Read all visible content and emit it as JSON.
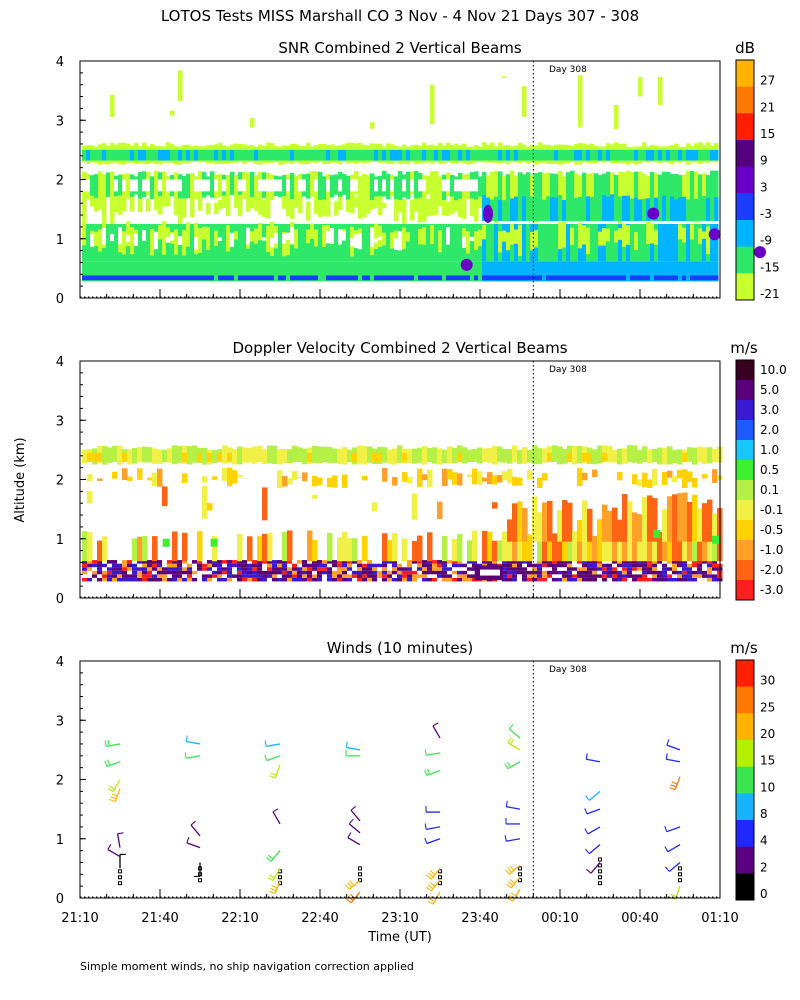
{
  "page": {
    "title": "LOTOS Tests MISS Marshall CO   3 Nov -  4 Nov 21 Days 307 - 308",
    "footnote": "Simple moment winds, no ship navigation correction applied"
  },
  "chart_data": [
    {
      "type": "heatmap",
      "id": "snr",
      "title": "SNR Combined 2 Vertical Beams",
      "ylabel": "",
      "xlim_minutes": [
        0,
        240
      ],
      "ylim": [
        0,
        4
      ],
      "yticks": [
        "0",
        "1",
        "2",
        "3",
        "4"
      ],
      "day_marker": {
        "label": "Day 308",
        "x_minutes": 170
      },
      "colorbar": {
        "unit": "dB",
        "labels": [
          "27",
          "21",
          "15",
          "9",
          "3",
          "-3",
          "-9",
          "-15",
          "-21"
        ],
        "colors": [
          "#ffb400",
          "#ff7800",
          "#ff1e00",
          "#55007f",
          "#6a00c8",
          "#1c3cff",
          "#00b4ff",
          "#2ee86a",
          "#c8ff2e"
        ]
      },
      "layers": [
        {
          "alt_km": [
            0.3,
            0.62
          ],
          "value_db": -9,
          "note": "low-level echo"
        },
        {
          "alt_km": [
            0.62,
            1.25
          ],
          "value_db": -15
        },
        {
          "alt_km": [
            1.6,
            2.1
          ],
          "value_db": -15
        },
        {
          "alt_km": [
            2.25,
            2.6
          ],
          "value_db": -15
        }
      ]
    },
    {
      "type": "heatmap",
      "id": "doppler",
      "title": "Doppler Velocity Combined 2 Vertical Beams",
      "ylabel": "Altitude (km)",
      "xlim_minutes": [
        0,
        240
      ],
      "ylim": [
        0,
        4
      ],
      "yticks": [
        "0",
        "1",
        "2",
        "3",
        "4"
      ],
      "day_marker": {
        "label": "Day 308",
        "x_minutes": 170
      },
      "colorbar": {
        "unit": "m/s",
        "labels": [
          "10.0",
          "5.0",
          "3.0",
          "2.0",
          "1.0",
          "0.5",
          "0.1",
          "-0.1",
          "-0.5",
          "-1.0",
          "-2.0",
          "-3.0"
        ],
        "colors": [
          "#3a0020",
          "#5a007a",
          "#3a1ad0",
          "#1e5aff",
          "#16c8ff",
          "#3cf030",
          "#b4f046",
          "#f0f046",
          "#ffd200",
          "#ffa028",
          "#ff6414",
          "#ff1e1e"
        ]
      }
    },
    {
      "type": "scatter",
      "id": "winds",
      "title": "Winds (10 minutes)",
      "xlabel": "Time (UT)",
      "xlim_minutes": [
        0,
        240
      ],
      "ylim": [
        0,
        4
      ],
      "yticks": [
        "0",
        "1",
        "2",
        "3",
        "4"
      ],
      "xticks": [
        "21:10",
        "21:40",
        "22:10",
        "22:40",
        "23:10",
        "23:40",
        "00:10",
        "00:40",
        "01:10"
      ],
      "day_marker": {
        "label": "Day 308",
        "x_minutes": 170
      },
      "colorbar": {
        "unit": "m/s",
        "labels": [
          "30",
          "25",
          "20",
          "15",
          "10",
          "8",
          "4",
          "2",
          "0"
        ],
        "colors": [
          "#ff2000",
          "#ff7800",
          "#ffb400",
          "#b4f000",
          "#3ce650",
          "#16b4ff",
          "#1e28ff",
          "#5a0080",
          "#000000"
        ]
      },
      "profiles_minutes": [
        15,
        45,
        75,
        105,
        135,
        165,
        195,
        225
      ],
      "barbs": [
        {
          "t": 15,
          "alt": 0.5,
          "spd": 1,
          "dir": 0
        },
        {
          "t": 15,
          "alt": 0.7,
          "spd": 3,
          "dir": 300
        },
        {
          "t": 15,
          "alt": 0.85,
          "spd": 2,
          "dir": 350
        },
        {
          "t": 15,
          "alt": 1.85,
          "spd": 20,
          "dir": 200
        },
        {
          "t": 15,
          "alt": 2.0,
          "spd": 15,
          "dir": 210
        },
        {
          "t": 15,
          "alt": 2.3,
          "spd": 12,
          "dir": 250
        },
        {
          "t": 15,
          "alt": 2.6,
          "spd": 13,
          "dir": 260
        },
        {
          "t": 45,
          "alt": 0.6,
          "spd": 1,
          "dir": 180
        },
        {
          "t": 45,
          "alt": 0.85,
          "spd": 2,
          "dir": 290
        },
        {
          "t": 45,
          "alt": 1.05,
          "spd": 2,
          "dir": 320
        },
        {
          "t": 45,
          "alt": 2.4,
          "spd": 10,
          "dir": 260
        },
        {
          "t": 45,
          "alt": 2.6,
          "spd": 8,
          "dir": 280
        },
        {
          "t": 75,
          "alt": 0.3,
          "spd": 20,
          "dir": 200
        },
        {
          "t": 75,
          "alt": 0.5,
          "spd": 15,
          "dir": 210
        },
        {
          "t": 75,
          "alt": 0.8,
          "spd": 12,
          "dir": 220
        },
        {
          "t": 75,
          "alt": 1.25,
          "spd": 3,
          "dir": 330
        },
        {
          "t": 75,
          "alt": 2.25,
          "spd": 15,
          "dir": 200
        },
        {
          "t": 75,
          "alt": 2.4,
          "spd": 10,
          "dir": 250
        },
        {
          "t": 75,
          "alt": 2.6,
          "spd": 8,
          "dir": 260
        },
        {
          "t": 105,
          "alt": 0.1,
          "spd": 25,
          "dir": 220
        },
        {
          "t": 105,
          "alt": 0.3,
          "spd": 20,
          "dir": 230
        },
        {
          "t": 105,
          "alt": 0.9,
          "spd": 3,
          "dir": 300
        },
        {
          "t": 105,
          "alt": 1.1,
          "spd": 3,
          "dir": 310
        },
        {
          "t": 105,
          "alt": 1.3,
          "spd": 3,
          "dir": 320
        },
        {
          "t": 105,
          "alt": 2.4,
          "spd": 10,
          "dir": 270
        },
        {
          "t": 105,
          "alt": 2.5,
          "spd": 8,
          "dir": 280
        },
        {
          "t": 135,
          "alt": 0.1,
          "spd": 22,
          "dir": 210
        },
        {
          "t": 135,
          "alt": 0.3,
          "spd": 22,
          "dir": 220
        },
        {
          "t": 135,
          "alt": 0.5,
          "spd": 20,
          "dir": 220
        },
        {
          "t": 135,
          "alt": 1.0,
          "spd": 4,
          "dir": 250
        },
        {
          "t": 135,
          "alt": 1.2,
          "spd": 4,
          "dir": 260
        },
        {
          "t": 135,
          "alt": 1.45,
          "spd": 4,
          "dir": 270
        },
        {
          "t": 135,
          "alt": 2.15,
          "spd": 12,
          "dir": 250
        },
        {
          "t": 135,
          "alt": 2.45,
          "spd": 10,
          "dir": 260
        },
        {
          "t": 135,
          "alt": 2.7,
          "spd": 3,
          "dir": 330
        },
        {
          "t": 165,
          "alt": 0.15,
          "spd": 22,
          "dir": 210
        },
        {
          "t": 165,
          "alt": 0.35,
          "spd": 22,
          "dir": 220
        },
        {
          "t": 165,
          "alt": 0.55,
          "spd": 20,
          "dir": 230
        },
        {
          "t": 165,
          "alt": 1.0,
          "spd": 4,
          "dir": 260
        },
        {
          "t": 165,
          "alt": 1.25,
          "spd": 4,
          "dir": 270
        },
        {
          "t": 165,
          "alt": 1.5,
          "spd": 4,
          "dir": 280
        },
        {
          "t": 165,
          "alt": 2.3,
          "spd": 12,
          "dir": 240
        },
        {
          "t": 165,
          "alt": 2.5,
          "spd": 15,
          "dir": 300
        },
        {
          "t": 165,
          "alt": 2.7,
          "spd": 10,
          "dir": 310
        },
        {
          "t": 195,
          "alt": 0.6,
          "spd": 3,
          "dir": 220
        },
        {
          "t": 195,
          "alt": 0.9,
          "spd": 4,
          "dir": 230
        },
        {
          "t": 195,
          "alt": 1.2,
          "spd": 4,
          "dir": 240
        },
        {
          "t": 195,
          "alt": 1.5,
          "spd": 5,
          "dir": 250
        },
        {
          "t": 195,
          "alt": 1.8,
          "spd": 8,
          "dir": 230
        },
        {
          "t": 195,
          "alt": 2.3,
          "spd": 4,
          "dir": 280
        },
        {
          "t": 225,
          "alt": 0.2,
          "spd": 15,
          "dir": 200
        },
        {
          "t": 225,
          "alt": 0.6,
          "spd": 4,
          "dir": 230
        },
        {
          "t": 225,
          "alt": 0.9,
          "spd": 4,
          "dir": 240
        },
        {
          "t": 225,
          "alt": 1.2,
          "spd": 4,
          "dir": 250
        },
        {
          "t": 225,
          "alt": 2.05,
          "spd": 25,
          "dir": 200
        },
        {
          "t": 225,
          "alt": 2.3,
          "spd": 4,
          "dir": 280
        },
        {
          "t": 225,
          "alt": 2.5,
          "spd": 4,
          "dir": 290
        }
      ]
    }
  ]
}
